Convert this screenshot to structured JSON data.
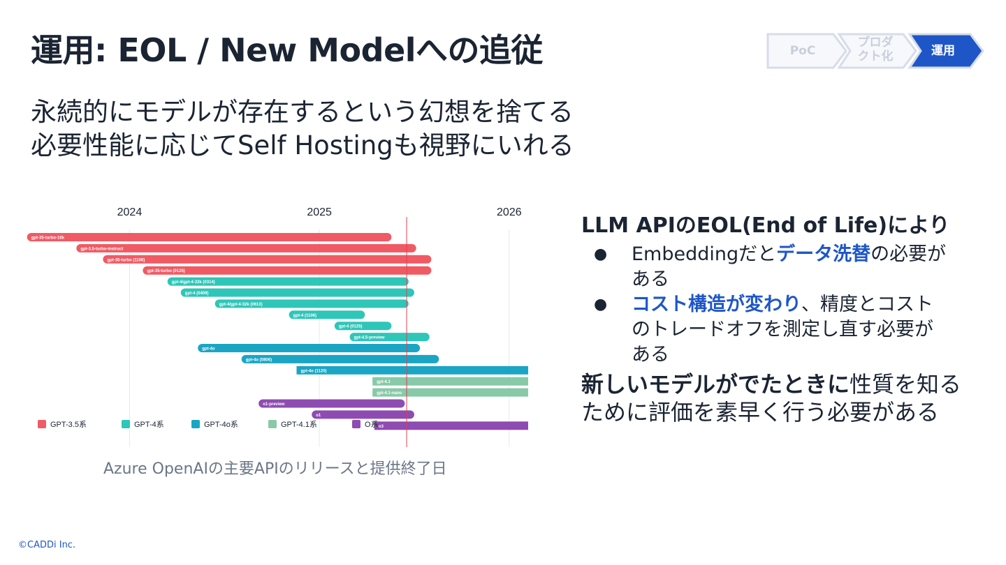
{
  "title": "運用: EOL / New Modelへの追従",
  "subtitle_lines": [
    "永続的にモデルが存在するという幻想を捨てる",
    "必要性能に応じてSelf Hostingも視野にいれる"
  ],
  "steps": [
    {
      "label_lines": [
        "PoC"
      ],
      "active": false
    },
    {
      "label_lines": [
        "プロダ",
        "クト化"
      ],
      "active": false
    },
    {
      "label_lines": [
        "運用"
      ],
      "active": true
    }
  ],
  "colors": {
    "accent": "#1e56c8",
    "gpt35": "#f05a64",
    "gpt4": "#2ec6b8",
    "gpt4o": "#1ba5c4",
    "gpt41": "#88c9a8",
    "o": "#8e4bb1",
    "today_line": "#e04050"
  },
  "chart_data": {
    "type": "bar",
    "orientation": "horizontal-timeline",
    "x_ticks": [
      "2024",
      "2025",
      "2026"
    ],
    "xlim": [
      2023.45,
      2026.1
    ],
    "today_marker": 2025.46,
    "categories": [
      "gpt-35-turbo-16k",
      "gpt-3.5-turbo-instruct",
      "gpt-35-turbo (1106)",
      "gpt-35-turbo (0125)",
      "gpt-4/gpt-4-32k (0314)",
      "gpt-4 (0409)",
      "gpt-4/gpt-4-32k (0613)",
      "gpt-4 (1106)",
      "gpt-4 (0125)",
      "gpt-4.5-preview",
      "gpt-4o",
      "gpt-4o (0806)",
      "gpt-4o (1120)",
      "gpt-4.1",
      "gpt-4.1-nano",
      "o1-preview",
      "o1",
      "o3"
    ],
    "series": [
      {
        "name": "GPT-3.5系",
        "color": "#f05a64",
        "bars": [
          {
            "label": "gpt-35-turbo-16k",
            "start": 2023.46,
            "end": 2025.38
          },
          {
            "label": "gpt-3.5-turbo-instruct",
            "start": 2023.72,
            "end": 2025.51
          },
          {
            "label": "gpt-35-turbo (1106)",
            "start": 2023.86,
            "end": 2025.59
          },
          {
            "label": "gpt-35-turbo (0125)",
            "start": 2024.07,
            "end": 2025.59
          }
        ]
      },
      {
        "name": "GPT-4系",
        "color": "#2ec6b8",
        "bars": [
          {
            "label": "gpt-4/gpt-4-32k (0314)",
            "start": 2024.2,
            "end": 2025.47
          },
          {
            "label": "gpt-4 (0409)",
            "start": 2024.27,
            "end": 2025.5
          },
          {
            "label": "gpt-4/gpt-4-32k (0613)",
            "start": 2024.45,
            "end": 2025.47
          },
          {
            "label": "gpt-4 (1106)",
            "start": 2024.84,
            "end": 2025.24
          },
          {
            "label": "gpt-4 (0125)",
            "start": 2025.08,
            "end": 2025.38
          },
          {
            "label": "gpt-4.5-preview",
            "start": 2025.16,
            "end": 2025.58
          }
        ]
      },
      {
        "name": "GPT-4o系",
        "color": "#1ba5c4",
        "bars": [
          {
            "label": "gpt-4o",
            "start": 2024.36,
            "end": 2025.53
          },
          {
            "label": "gpt-4o (0806)",
            "start": 2024.59,
            "end": 2025.63
          },
          {
            "label": "gpt-4o (1120)",
            "start": 2024.88,
            "end": 2026.1
          }
        ]
      },
      {
        "name": "GPT-4.1系",
        "color": "#88c9a8",
        "bars": [
          {
            "label": "gpt-4.1",
            "start": 2025.28,
            "end": 2026.1
          },
          {
            "label": "gpt-4.1-nano",
            "start": 2025.28,
            "end": 2026.1
          }
        ]
      },
      {
        "name": "O系",
        "color": "#8e4bb1",
        "bars": [
          {
            "label": "o1-preview",
            "start": 2024.68,
            "end": 2025.45
          },
          {
            "label": "o1",
            "start": 2024.96,
            "end": 2025.5
          },
          {
            "label": "o3",
            "start": 2025.29,
            "end": 2026.1
          }
        ]
      }
    ],
    "legend_position": "bottom-left",
    "grid": true
  },
  "caption": "Azure OpenAIの主要APIのリリースと提供終了日",
  "right": {
    "heading": "LLM APIのEOL(End of Life)により",
    "bullet_symbol": "●",
    "bullets": [
      {
        "pre": "Embeddingだと",
        "highlight": "データ洗替",
        "post_lines": [
          "の必要が",
          "ある"
        ]
      },
      {
        "pre": "",
        "highlight": "コスト構造が変わり",
        "post_lines": [
          "、精度とコスト",
          "のトレードオフを測定し直す必要が",
          "ある"
        ]
      }
    ],
    "closing_bold": "新しいモデルがでたときに",
    "closing_rest_lines": [
      "性質を知る",
      "ために評価を素早く行う必要がある"
    ]
  },
  "footer": "©CADDi Inc."
}
